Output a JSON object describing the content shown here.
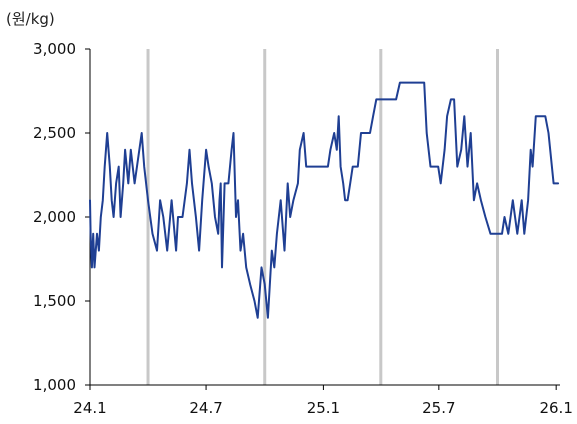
{
  "chart_data": {
    "type": "line",
    "unit_label": "(원/kg)",
    "ylim": [
      1000,
      3000
    ],
    "y_ticks": [
      {
        "value": 1000,
        "label": "1,000"
      },
      {
        "value": 1500,
        "label": "1,500"
      },
      {
        "value": 2000,
        "label": "2,000"
      },
      {
        "value": 2500,
        "label": "2,500"
      },
      {
        "value": 3000,
        "label": "3,000"
      }
    ],
    "x_ticks": [
      {
        "value": "2024-01-01",
        "label": "24.1"
      },
      {
        "value": "2024-07-01",
        "label": "24.7"
      },
      {
        "value": "2025-01-01",
        "label": "25.1"
      },
      {
        "value": "2025-07-01",
        "label": "25.7"
      },
      {
        "value": "2026-01-01",
        "label": "26.1"
      }
    ],
    "vertical_grid": [
      "2024-04-01",
      "2024-10-01",
      "2025-04-01",
      "2025-10-01"
    ],
    "xlim": [
      "2024-01-01",
      "2026-01-07"
    ],
    "series_color": "#1f3f93",
    "series": [
      {
        "values": [
          [
            "2024-01-01",
            2100
          ],
          [
            "2024-01-02",
            1900
          ],
          [
            "2024-01-04",
            1700
          ],
          [
            "2024-01-06",
            1900
          ],
          [
            "2024-01-08",
            1700
          ],
          [
            "2024-01-12",
            1900
          ],
          [
            "2024-01-15",
            1800
          ],
          [
            "2024-01-18",
            2000
          ],
          [
            "2024-01-21",
            2100
          ],
          [
            "2024-01-24",
            2300
          ],
          [
            "2024-01-28",
            2500
          ],
          [
            "2024-02-01",
            2300
          ],
          [
            "2024-02-04",
            2100
          ],
          [
            "2024-02-07",
            2000
          ],
          [
            "2024-02-11",
            2200
          ],
          [
            "2024-02-15",
            2300
          ],
          [
            "2024-02-18",
            2000
          ],
          [
            "2024-02-22",
            2200
          ],
          [
            "2024-02-25",
            2400
          ],
          [
            "2024-03-01",
            2200
          ],
          [
            "2024-03-05",
            2400
          ],
          [
            "2024-03-11",
            2200
          ],
          [
            "2024-03-22",
            2500
          ],
          [
            "2024-03-26",
            2300
          ],
          [
            "2024-04-01",
            2100
          ],
          [
            "2024-04-08",
            1900
          ],
          [
            "2024-04-15",
            1800
          ],
          [
            "2024-04-20",
            2100
          ],
          [
            "2024-04-25",
            2000
          ],
          [
            "2024-05-01",
            1800
          ],
          [
            "2024-05-08",
            2100
          ],
          [
            "2024-05-15",
            1800
          ],
          [
            "2024-05-18",
            2000
          ],
          [
            "2024-05-25",
            2000
          ],
          [
            "2024-06-01",
            2200
          ],
          [
            "2024-06-05",
            2400
          ],
          [
            "2024-06-09",
            2200
          ],
          [
            "2024-06-15",
            2000
          ],
          [
            "2024-06-20",
            1800
          ],
          [
            "2024-06-25",
            2100
          ],
          [
            "2024-07-01",
            2400
          ],
          [
            "2024-07-05",
            2300
          ],
          [
            "2024-07-10",
            2200
          ],
          [
            "2024-07-15",
            2000
          ],
          [
            "2024-07-20",
            1900
          ],
          [
            "2024-07-22",
            2100
          ],
          [
            "2024-07-24",
            2200
          ],
          [
            "2024-07-26",
            1700
          ],
          [
            "2024-07-30",
            2200
          ],
          [
            "2024-08-05",
            2200
          ],
          [
            "2024-08-10",
            2400
          ],
          [
            "2024-08-13",
            2500
          ],
          [
            "2024-08-17",
            2000
          ],
          [
            "2024-08-20",
            2100
          ],
          [
            "2024-08-24",
            1800
          ],
          [
            "2024-08-28",
            1900
          ],
          [
            "2024-09-02",
            1700
          ],
          [
            "2024-09-08",
            1600
          ],
          [
            "2024-09-15",
            1500
          ],
          [
            "2024-09-20",
            1400
          ],
          [
            "2024-09-26",
            1700
          ],
          [
            "2024-10-01",
            1600
          ],
          [
            "2024-10-06",
            1400
          ],
          [
            "2024-10-12",
            1800
          ],
          [
            "2024-10-16",
            1700
          ],
          [
            "2024-10-20",
            1900
          ],
          [
            "2024-10-26",
            2100
          ],
          [
            "2024-11-01",
            1800
          ],
          [
            "2024-11-06",
            2200
          ],
          [
            "2024-11-10",
            2000
          ],
          [
            "2024-11-15",
            2100
          ],
          [
            "2024-11-22",
            2200
          ],
          [
            "2024-11-25",
            2400
          ],
          [
            "2024-12-01",
            2500
          ],
          [
            "2024-12-05",
            2300
          ],
          [
            "2024-12-15",
            2300
          ],
          [
            "2024-12-25",
            2300
          ],
          [
            "2025-01-08",
            2300
          ],
          [
            "2025-01-12",
            2400
          ],
          [
            "2025-01-18",
            2500
          ],
          [
            "2025-01-22",
            2400
          ],
          [
            "2025-01-25",
            2600
          ],
          [
            "2025-01-28",
            2300
          ],
          [
            "2025-02-01",
            2200
          ],
          [
            "2025-02-04",
            2100
          ],
          [
            "2025-02-08",
            2100
          ],
          [
            "2025-02-12",
            2200
          ],
          [
            "2025-02-16",
            2300
          ],
          [
            "2025-02-20",
            2300
          ],
          [
            "2025-02-24",
            2300
          ],
          [
            "2025-03-01",
            2500
          ],
          [
            "2025-03-15",
            2500
          ],
          [
            "2025-03-20",
            2600
          ],
          [
            "2025-03-25",
            2700
          ],
          [
            "2025-04-01",
            2700
          ],
          [
            "2025-04-15",
            2700
          ],
          [
            "2025-04-25",
            2700
          ],
          [
            "2025-05-01",
            2800
          ],
          [
            "2025-05-20",
            2800
          ],
          [
            "2025-06-08",
            2800
          ],
          [
            "2025-06-12",
            2500
          ],
          [
            "2025-06-18",
            2300
          ],
          [
            "2025-06-30",
            2300
          ],
          [
            "2025-07-04",
            2200
          ],
          [
            "2025-07-10",
            2400
          ],
          [
            "2025-07-14",
            2600
          ],
          [
            "2025-07-20",
            2700
          ],
          [
            "2025-07-25",
            2700
          ],
          [
            "2025-07-30",
            2300
          ],
          [
            "2025-08-05",
            2400
          ],
          [
            "2025-08-10",
            2600
          ],
          [
            "2025-08-15",
            2300
          ],
          [
            "2025-08-20",
            2500
          ],
          [
            "2025-08-25",
            2100
          ],
          [
            "2025-08-30",
            2200
          ],
          [
            "2025-09-05",
            2100
          ],
          [
            "2025-09-12",
            2000
          ],
          [
            "2025-09-20",
            1900
          ],
          [
            "2025-10-01",
            1900
          ],
          [
            "2025-10-08",
            1900
          ],
          [
            "2025-10-12",
            2000
          ],
          [
            "2025-10-18",
            1900
          ],
          [
            "2025-10-25",
            2100
          ],
          [
            "2025-11-01",
            1900
          ],
          [
            "2025-11-08",
            2100
          ],
          [
            "2025-11-12",
            1900
          ],
          [
            "2025-11-18",
            2100
          ],
          [
            "2025-11-22",
            2400
          ],
          [
            "2025-11-25",
            2300
          ],
          [
            "2025-11-30",
            2600
          ],
          [
            "2025-12-10",
            2600
          ],
          [
            "2025-12-15",
            2600
          ],
          [
            "2025-12-20",
            2500
          ],
          [
            "2025-12-28",
            2200
          ],
          [
            "2026-01-04",
            2200
          ]
        ]
      }
    ]
  }
}
